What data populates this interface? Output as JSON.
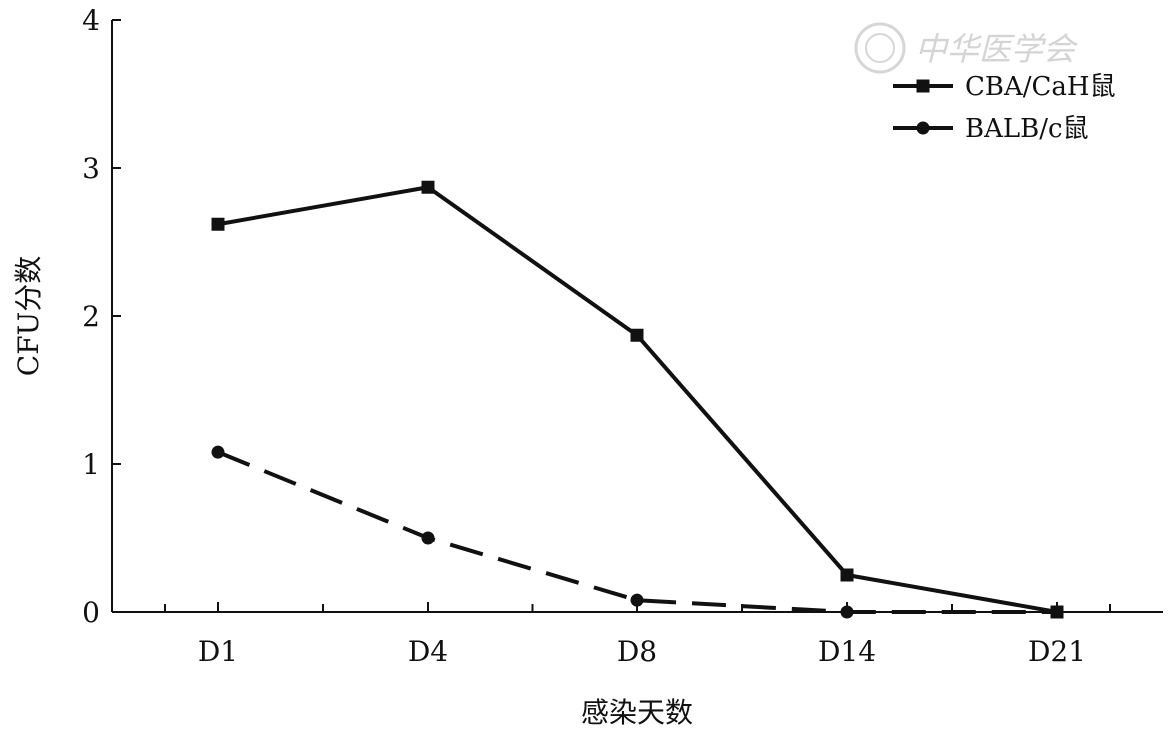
{
  "chart_data": {
    "type": "line",
    "xlabel": "感染天数",
    "ylabel": "CFU分数",
    "categories": [
      "D1",
      "D4",
      "D8",
      "D14",
      "D21"
    ],
    "ylim": [
      0,
      4
    ],
    "yticks": [
      0,
      1,
      2,
      3,
      4
    ],
    "grid": false,
    "legend_position": "top-right",
    "series": [
      {
        "name": "CBA/CaH鼠",
        "marker": "square",
        "line_style": "solid",
        "color": "#111111",
        "values": [
          2.62,
          2.87,
          1.87,
          0.25,
          0.0
        ]
      },
      {
        "name": "BALB/c鼠",
        "marker": "circle",
        "line_style": "dashed",
        "color": "#111111",
        "values": [
          1.08,
          0.5,
          0.08,
          0.0,
          0.0
        ]
      }
    ]
  },
  "watermark": {
    "text": "中华医学会"
  }
}
